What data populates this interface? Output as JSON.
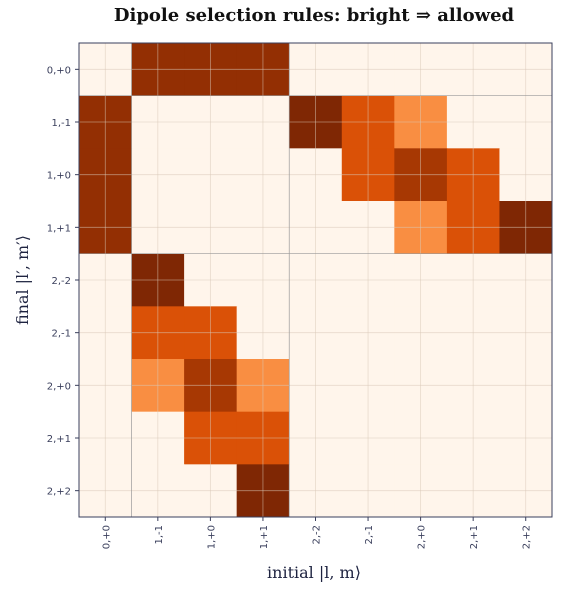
{
  "chart_data": {
    "type": "heatmap",
    "title": "Dipole selection rules: bright ⇒ allowed",
    "x_label": "initial  |l, m⟩",
    "y_label": "final  |l′, m′⟩",
    "x_categories": [
      "0,+0",
      "1,-1",
      "1,+0",
      "1,+1",
      "2,-2",
      "2,-1",
      "2,+0",
      "2,+1",
      "2,+2"
    ],
    "y_categories": [
      "0,+0",
      "1,-1",
      "1,+0",
      "1,+1",
      "2,-2",
      "2,-1",
      "2,+0",
      "2,+1",
      "2,+2"
    ],
    "values": [
      [
        0,
        0.9,
        0.9,
        0.9,
        0,
        0,
        0,
        0,
        0
      ],
      [
        0.9,
        0,
        0,
        0,
        1.0,
        0.6,
        0.35,
        0,
        0
      ],
      [
        0.9,
        0,
        0,
        0,
        0,
        0.6,
        0.8,
        0.6,
        0
      ],
      [
        0.9,
        0,
        0,
        0,
        0,
        0,
        0.35,
        0.6,
        1.0
      ],
      [
        0,
        1.0,
        0,
        0,
        0,
        0,
        0,
        0,
        0
      ],
      [
        0,
        0.6,
        0.6,
        0,
        0,
        0,
        0,
        0,
        0
      ],
      [
        0,
        0.35,
        0.8,
        0.35,
        0,
        0,
        0,
        0,
        0
      ],
      [
        0,
        0,
        0.6,
        0.6,
        0,
        0,
        0,
        0,
        0
      ],
      [
        0,
        0,
        0,
        1.0,
        0,
        0,
        0,
        0,
        0
      ]
    ],
    "colorscale": [
      "#fff5eb",
      "#fdd9b4",
      "#fda762",
      "#f3701b",
      "#e25508",
      "#b84004",
      "#9c3203",
      "#7f2704"
    ],
    "zlim": [
      0,
      1
    ],
    "grid": true
  }
}
